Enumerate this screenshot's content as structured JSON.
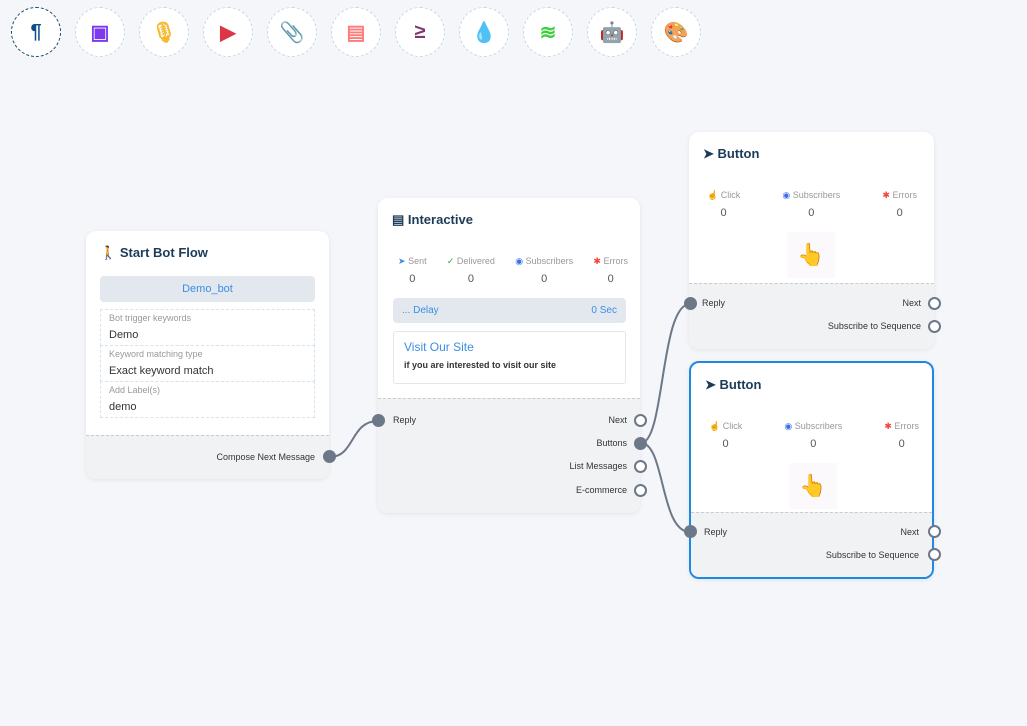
{
  "toolbar": [
    {
      "icon": "paragraph-icon",
      "glyph": "¶",
      "color": "#0d4d8a"
    },
    {
      "icon": "image-icon",
      "glyph": "▣",
      "color": "#7c3aed"
    },
    {
      "icon": "microphone-icon",
      "glyph": "🎙",
      "color": "#f5b82e"
    },
    {
      "icon": "youtube-icon",
      "glyph": "▶",
      "color": "#dc3545"
    },
    {
      "icon": "paperclip-icon",
      "glyph": "📎",
      "color": "#28a745"
    },
    {
      "icon": "newspaper-icon",
      "glyph": "▤",
      "color": "#ff7b7b"
    },
    {
      "icon": "greater-equal-icon",
      "glyph": "≥",
      "color": "#7a3b6e"
    },
    {
      "icon": "droplet-icon",
      "glyph": "💧",
      "color": "#c8102e"
    },
    {
      "icon": "stack-icon",
      "glyph": "≋",
      "color": "#3ecf3e"
    },
    {
      "icon": "robot-icon",
      "glyph": "🤖",
      "color": "#1a1aff"
    },
    {
      "icon": "palette-icon",
      "glyph": "🎨",
      "color": "#16c60c"
    }
  ],
  "start": {
    "title": "Start Bot Flow",
    "bot": "Demo_bot",
    "fields": [
      {
        "label": "Bot trigger keywords",
        "value": "Demo"
      },
      {
        "label": "Keyword matching type",
        "value": "Exact keyword match"
      },
      {
        "label": "Add Label(s)",
        "value": "demo"
      }
    ],
    "output": "Compose Next Message"
  },
  "interactive": {
    "title": "Interactive",
    "stats": [
      {
        "label": "Sent",
        "value": "0"
      },
      {
        "label": "Delivered",
        "value": "0"
      },
      {
        "label": "Subscribers",
        "value": "0"
      },
      {
        "label": "Errors",
        "value": "0"
      }
    ],
    "delay_label": "... Delay",
    "delay_value": "0 Sec",
    "card_title": "Visit Our Site",
    "card_text": "if you are interested to visit our site",
    "input": "Reply",
    "outputs": [
      "Next",
      "Buttons",
      "List Messages",
      "E-commerce"
    ]
  },
  "buttons": [
    {
      "title": "Button",
      "stats": [
        {
          "label": "Click",
          "value": "0"
        },
        {
          "label": "Subscribers",
          "value": "0"
        },
        {
          "label": "Errors",
          "value": "0"
        }
      ],
      "input": "Reply",
      "outputs": [
        "Next",
        "Subscribe to Sequence"
      ]
    },
    {
      "title": "Button",
      "stats": [
        {
          "label": "Click",
          "value": "0"
        },
        {
          "label": "Subscribers",
          "value": "0"
        },
        {
          "label": "Errors",
          "value": "0"
        }
      ],
      "input": "Reply",
      "outputs": [
        "Next",
        "Subscribe to Sequence"
      ]
    }
  ],
  "colors": {
    "accent": "#1e88e5",
    "link": "#3a8ee6",
    "error": "#f44336"
  }
}
